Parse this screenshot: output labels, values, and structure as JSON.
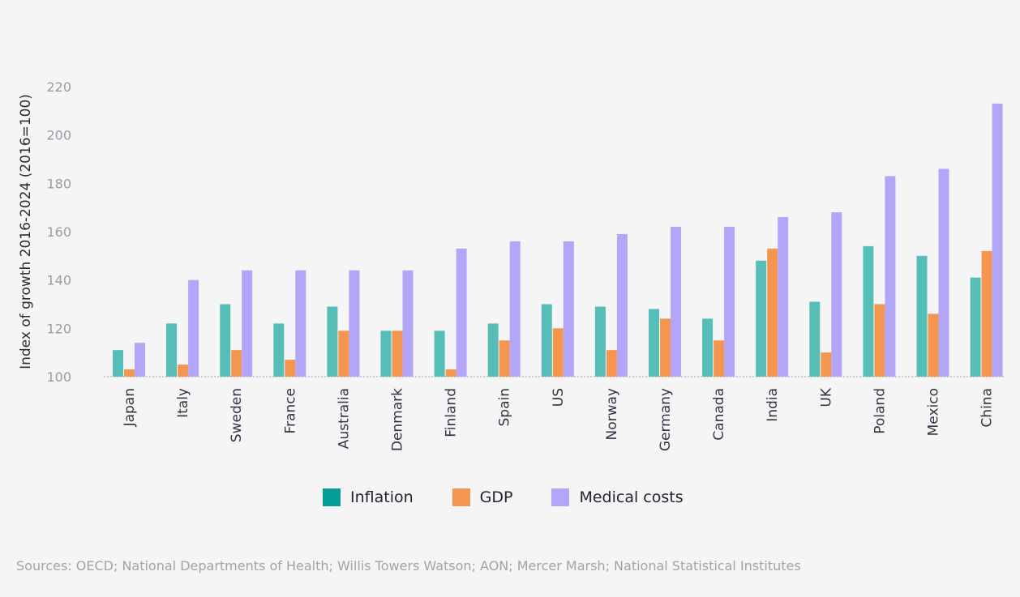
{
  "chart_data": {
    "type": "bar",
    "ylabel": "Index of growth 2016-2024 (2016=100)",
    "ylim": [
      100,
      220
    ],
    "yticks": [
      100,
      120,
      140,
      160,
      180,
      200,
      220
    ],
    "categories": [
      "Japan",
      "Italy",
      "Sweden",
      "France",
      "Australia",
      "Denmark",
      "Finland",
      "Spain",
      "US",
      "Norway",
      "Germany",
      "Canada",
      "India",
      "UK",
      "Poland",
      "Mexico",
      "China"
    ],
    "series": [
      {
        "name": "Inflation",
        "color": "#56bdb7",
        "legend_color": "#079c96",
        "values": [
          111,
          122,
          130,
          122,
          129,
          119,
          119,
          122,
          130,
          129,
          128,
          124,
          148,
          131,
          154,
          150,
          141
        ]
      },
      {
        "name": "GDP",
        "color": "#f4964f",
        "legend_color": "#f4964f",
        "values": [
          103,
          105,
          111,
          107,
          119,
          119,
          103,
          115,
          120,
          111,
          124,
          115,
          153,
          110,
          130,
          126,
          152
        ]
      },
      {
        "name": "Medical costs",
        "color": "#b3a5f7",
        "legend_color": "#b3a5f7",
        "values": [
          114,
          140,
          144,
          144,
          144,
          144,
          153,
          156,
          156,
          159,
          162,
          162,
          166,
          168,
          183,
          186,
          213
        ]
      }
    ],
    "grid": false,
    "legend_position": "bottom"
  },
  "source_text": "Sources: OECD; National Departments of Health; Willis Towers Watson; AON; Mercer Marsh; National Statistical Institutes"
}
